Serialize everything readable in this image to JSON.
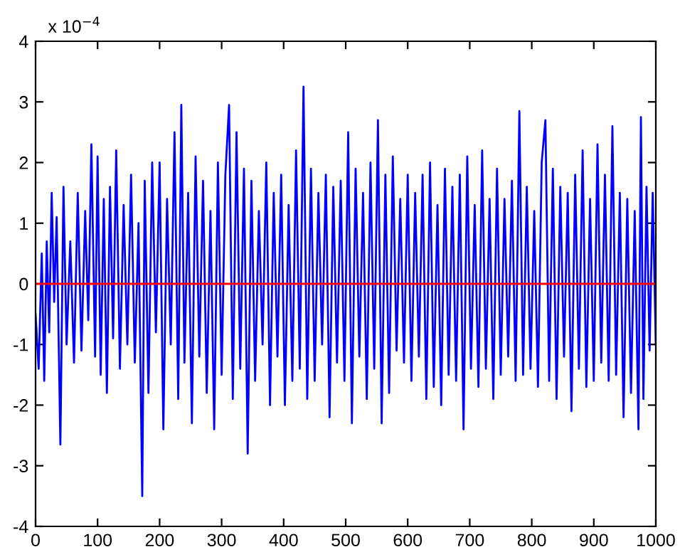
{
  "chart_data": {
    "type": "line",
    "x": [
      0,
      5,
      10,
      14,
      18,
      22,
      26,
      30,
      34,
      40,
      45,
      50,
      56,
      62,
      68,
      74,
      80,
      85,
      90,
      96,
      100,
      105,
      110,
      115,
      120,
      125,
      130,
      136,
      142,
      148,
      154,
      160,
      166,
      172,
      176,
      182,
      188,
      194,
      200,
      206,
      212,
      218,
      224,
      230,
      235,
      240,
      246,
      252,
      258,
      264,
      270,
      276,
      282,
      288,
      294,
      300,
      306,
      312,
      318,
      324,
      330,
      336,
      342,
      348,
      354,
      360,
      366,
      372,
      378,
      384,
      390,
      396,
      402,
      408,
      414,
      420,
      426,
      432,
      438,
      444,
      450,
      456,
      462,
      468,
      474,
      480,
      486,
      492,
      498,
      504,
      510,
      516,
      522,
      528,
      534,
      540,
      546,
      552,
      558,
      564,
      570,
      576,
      582,
      588,
      594,
      600,
      606,
      612,
      618,
      624,
      630,
      636,
      642,
      648,
      654,
      660,
      666,
      672,
      678,
      684,
      690,
      696,
      702,
      708,
      714,
      720,
      726,
      732,
      738,
      744,
      750,
      756,
      762,
      768,
      774,
      780,
      786,
      792,
      798,
      804,
      810,
      816,
      822,
      828,
      834,
      840,
      846,
      852,
      858,
      864,
      870,
      876,
      882,
      888,
      894,
      900,
      906,
      912,
      918,
      924,
      930,
      936,
      942,
      948,
      954,
      960,
      966,
      972,
      976,
      980,
      985,
      990,
      995,
      1000
    ],
    "series": [
      {
        "color": "#0000ff",
        "values": [
          -0.5,
          -1.4,
          0.5,
          -1.6,
          0.7,
          -0.8,
          1.5,
          -0.3,
          1.1,
          -2.65,
          1.6,
          -1.0,
          0.7,
          -1.3,
          1.5,
          -1.1,
          1.2,
          -0.6,
          2.3,
          -1.2,
          2.1,
          -1.5,
          1.4,
          -1.8,
          1.6,
          -0.9,
          2.2,
          -1.4,
          1.3,
          -1.0,
          1.8,
          -1.3,
          1.0,
          -3.5,
          1.7,
          -1.8,
          2.0,
          -0.8,
          2.0,
          -2.4,
          1.4,
          -1.0,
          2.5,
          -1.9,
          2.95,
          -1.3,
          1.5,
          -2.3,
          2.1,
          -1.2,
          1.7,
          -1.8,
          1.2,
          -2.4,
          2.0,
          -1.5,
          1.8,
          2.95,
          -1.9,
          2.5,
          -1.4,
          1.9,
          -2.8,
          1.7,
          -1.6,
          1.2,
          -1.0,
          2.0,
          -2.0,
          1.5,
          -1.2,
          1.8,
          -2.0,
          1.3,
          -1.6,
          2.2,
          -1.4,
          3.25,
          -1.9,
          1.9,
          -1.6,
          1.5,
          -1.0,
          1.8,
          -2.2,
          1.6,
          -1.3,
          1.7,
          -1.6,
          2.5,
          -2.3,
          1.9,
          -1.2,
          1.5,
          -1.9,
          2.0,
          -1.4,
          2.7,
          -2.3,
          1.8,
          -1.8,
          2.1,
          -1.1,
          1.4,
          -1.3,
          1.8,
          -1.6,
          1.5,
          -1.2,
          1.8,
          -1.9,
          2.0,
          -1.7,
          1.3,
          -2.0,
          1.9,
          -1.5,
          1.6,
          -1.6,
          1.8,
          -2.4,
          2.1,
          -1.4,
          1.3,
          -1.7,
          2.2,
          -1.4,
          1.4,
          -1.9,
          1.9,
          -1.5,
          1.4,
          -1.2,
          1.7,
          -1.6,
          2.85,
          -1.5,
          1.6,
          -1.4,
          1.2,
          -1.7,
          2.0,
          2.7,
          -1.6,
          1.9,
          -1.9,
          1.6,
          -1.2,
          1.5,
          -2.1,
          1.8,
          -1.4,
          2.2,
          -1.7,
          1.4,
          -1.6,
          2.3,
          -1.3,
          1.8,
          -1.6,
          2.6,
          -1.5,
          1.5,
          -2.2,
          1.4,
          -1.8,
          1.2,
          -2.4,
          2.75,
          -1.9,
          1.6,
          -1.1,
          1.5,
          -1.0
        ]
      }
    ],
    "ref_lines": [
      {
        "axis": "y",
        "value": 0,
        "color": "#ff0000"
      }
    ],
    "annotations": [
      "x 10$^{−4}$"
    ],
    "xlim": [
      0,
      1000
    ],
    "xticks": [
      0,
      100,
      200,
      300,
      400,
      500,
      600,
      700,
      800,
      900,
      1000
    ],
    "ylim": [
      -4,
      4
    ],
    "yticks": [
      -4,
      -3,
      -2,
      -1,
      0,
      1,
      2,
      3,
      4
    ],
    "grid": false,
    "legend": false
  }
}
